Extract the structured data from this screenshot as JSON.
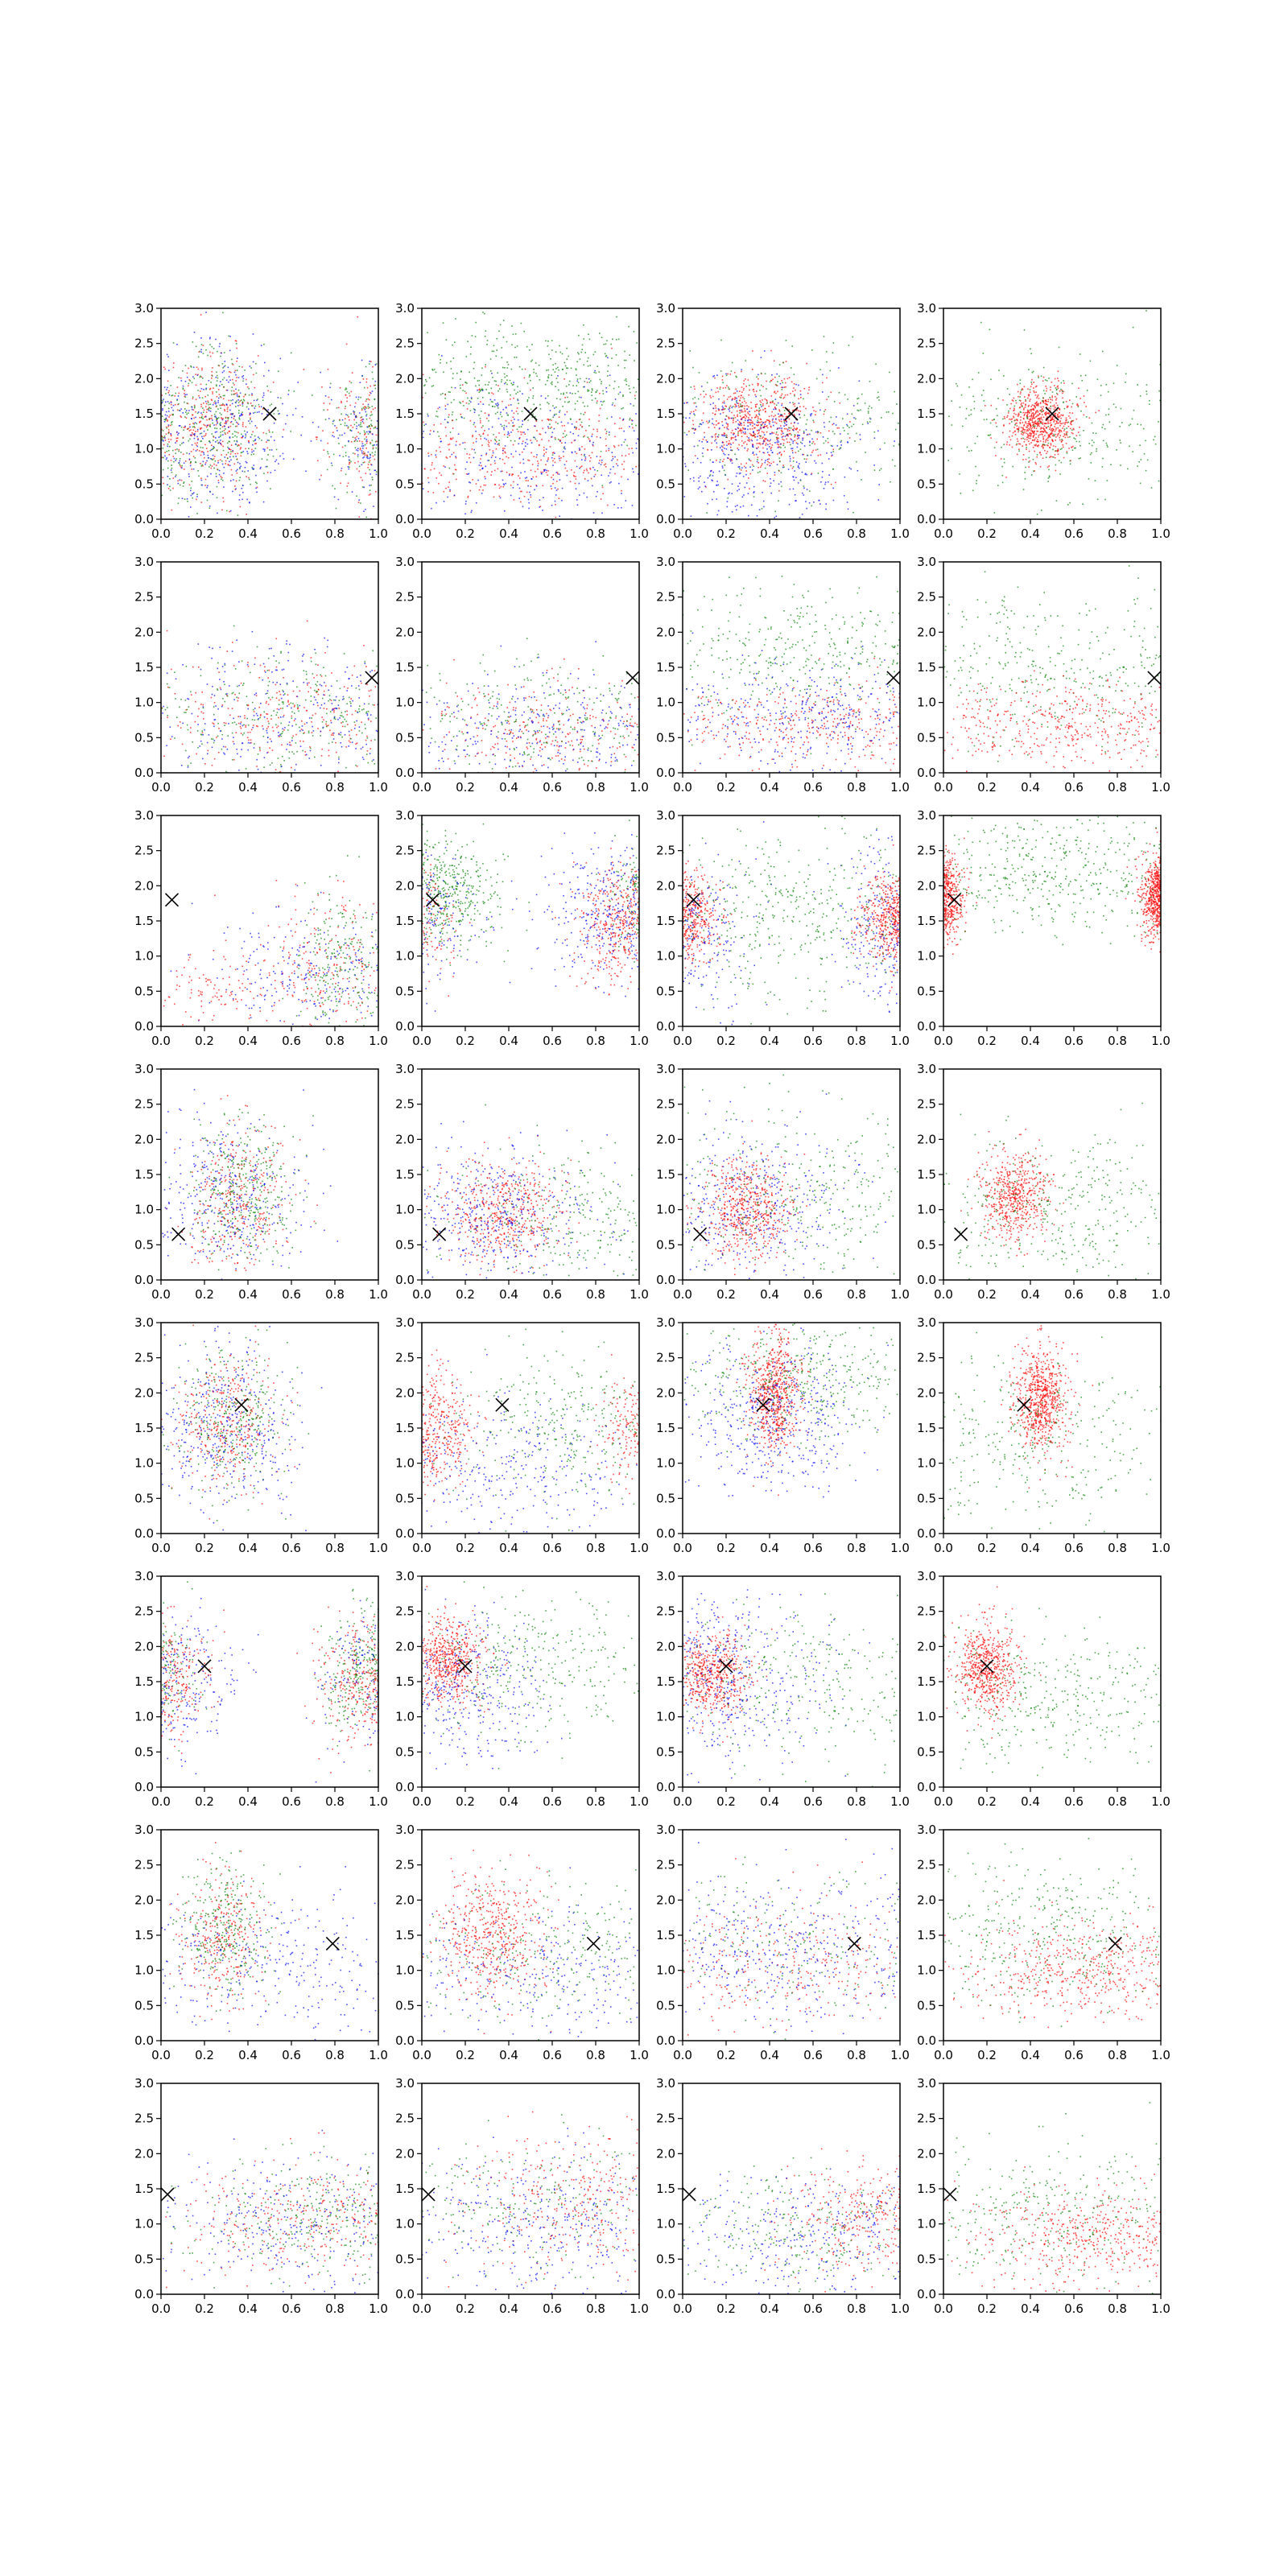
{
  "figure": {
    "rows": 8,
    "cols": 4,
    "marker": "x"
  },
  "chart_data": {
    "type": "scatter",
    "panel_count": 32,
    "x_ticks": [
      "0.0",
      "0.2",
      "0.4",
      "0.6",
      "0.8",
      "1.0"
    ],
    "y_ticks": [
      "0.0",
      "0.5",
      "1.0",
      "1.5",
      "2.0",
      "2.5",
      "3.0"
    ],
    "xlim": [
      0,
      1
    ],
    "ylim": [
      0,
      3
    ],
    "grid": false,
    "legend": "none",
    "series_colors": {
      "red": "#ff0000",
      "green": "#008000",
      "blue": "#0000ff"
    },
    "panels": [
      {
        "row": 0,
        "col": 0,
        "marker": [
          0.5,
          1.5
        ],
        "description": "mixed red/green/blue clusters near x≈0.25 and wrapping at x≈0.95"
      },
      {
        "row": 0,
        "col": 1,
        "marker": [
          0.5,
          1.5
        ],
        "description": "green band upper, red band lower, blue spread"
      },
      {
        "row": 0,
        "col": 2,
        "marker": [
          0.5,
          1.5
        ],
        "description": "red blob centered x≈0.35, blue beneath, green diffuse"
      },
      {
        "row": 0,
        "col": 3,
        "marker": [
          0.5,
          1.5
        ],
        "description": "dense red blob at x≈0.45,y≈1.4, green diffuse"
      },
      {
        "row": 1,
        "col": 0,
        "marker": [
          0.97,
          1.35
        ],
        "description": "mixed low band"
      },
      {
        "row": 1,
        "col": 1,
        "marker": [
          0.97,
          1.35
        ],
        "description": "mixed low band"
      },
      {
        "row": 1,
        "col": 2,
        "marker": [
          0.97,
          1.35
        ],
        "description": "green upper, red/blue lower"
      },
      {
        "row": 1,
        "col": 3,
        "marker": [
          0.97,
          1.35
        ],
        "description": "green upper, red lower band"
      },
      {
        "row": 2,
        "col": 0,
        "marker": [
          0.05,
          1.8
        ],
        "description": "mixed cluster at x≈0.85 low"
      },
      {
        "row": 2,
        "col": 1,
        "marker": [
          0.05,
          1.8
        ],
        "description": "green at left, red at right"
      },
      {
        "row": 2,
        "col": 2,
        "marker": [
          0.05,
          1.8
        ],
        "description": "red clusters on both edges, green middle"
      },
      {
        "row": 2,
        "col": 3,
        "marker": [
          0.05,
          1.8
        ],
        "description": "dense red on edges, green diffuse"
      },
      {
        "row": 3,
        "col": 0,
        "marker": [
          0.08,
          0.65
        ],
        "description": "mixed blob at x≈0.35"
      },
      {
        "row": 3,
        "col": 1,
        "marker": [
          0.08,
          0.65
        ],
        "description": "red blob x≈0.4"
      },
      {
        "row": 3,
        "col": 2,
        "marker": [
          0.08,
          0.65
        ],
        "description": "red blob x≈0.3"
      },
      {
        "row": 3,
        "col": 3,
        "marker": [
          0.08,
          0.65
        ],
        "description": "red blob x≈0.3, green diffuse"
      },
      {
        "row": 4,
        "col": 0,
        "marker": [
          0.37,
          1.83
        ],
        "description": "mixed blob x≈0.3"
      },
      {
        "row": 4,
        "col": 1,
        "marker": [
          0.37,
          1.83
        ],
        "description": "red left, green right"
      },
      {
        "row": 4,
        "col": 2,
        "marker": [
          0.37,
          1.83
        ],
        "description": "dense red blob x≈0.4,y≈2, blue below"
      },
      {
        "row": 4,
        "col": 3,
        "marker": [
          0.37,
          1.83
        ],
        "description": "dense red blob x≈0.45,y≈1.9"
      },
      {
        "row": 5,
        "col": 0,
        "marker": [
          0.2,
          1.72
        ],
        "description": "mixed at left and right edges"
      },
      {
        "row": 5,
        "col": 1,
        "marker": [
          0.2,
          1.72
        ],
        "description": "red blob x≈0.15"
      },
      {
        "row": 5,
        "col": 2,
        "marker": [
          0.2,
          1.72
        ],
        "description": "red blob x≈0.15, blue spread"
      },
      {
        "row": 5,
        "col": 3,
        "marker": [
          0.2,
          1.72
        ],
        "description": "red blob x≈0.2, green diffuse"
      },
      {
        "row": 6,
        "col": 0,
        "marker": [
          0.79,
          1.38
        ],
        "description": "mixed blob x≈0.3"
      },
      {
        "row": 6,
        "col": 1,
        "marker": [
          0.79,
          1.38
        ],
        "description": "red x≈0.35"
      },
      {
        "row": 6,
        "col": 2,
        "marker": [
          0.79,
          1.38
        ],
        "description": "mixed band"
      },
      {
        "row": 6,
        "col": 3,
        "marker": [
          0.79,
          1.38
        ],
        "description": "red band low, green upper"
      },
      {
        "row": 7,
        "col": 0,
        "marker": [
          0.03,
          1.42
        ],
        "description": "mixed band, denser right"
      },
      {
        "row": 7,
        "col": 1,
        "marker": [
          0.03,
          1.42
        ],
        "description": "mixed band"
      },
      {
        "row": 7,
        "col": 2,
        "marker": [
          0.03,
          1.42
        ],
        "description": "mixed, red right"
      },
      {
        "row": 7,
        "col": 3,
        "marker": [
          0.03,
          1.42
        ],
        "description": "red low band, green upper"
      }
    ]
  }
}
